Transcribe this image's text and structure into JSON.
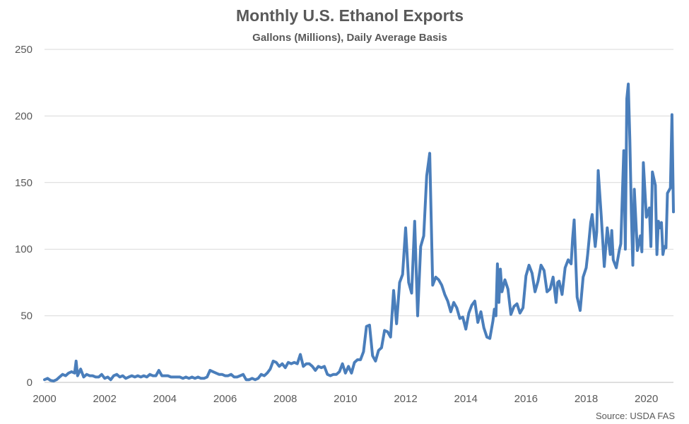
{
  "chart_data": {
    "type": "line",
    "title": "Monthly U.S. Ethanol Exports",
    "subtitle": "Gallons (Millions), Daily Average Basis",
    "source": "Source: USDA FAS",
    "xlabel": "",
    "ylabel": "",
    "xlim": [
      2000,
      2020.9
    ],
    "ylim": [
      0,
      250
    ],
    "yticks": [
      0,
      50,
      100,
      150,
      200,
      250
    ],
    "xticks": [
      2000,
      2002,
      2004,
      2006,
      2008,
      2010,
      2012,
      2014,
      2016,
      2018,
      2020
    ],
    "grid": true,
    "legend": "none",
    "colors": {
      "series": "#4a7ebb",
      "grid": "#d9d9d9",
      "text": "#595959"
    },
    "series": [
      {
        "points": [
          [
            2000.0,
            2
          ],
          [
            2000.1,
            3
          ],
          [
            2000.2,
            1.5
          ],
          [
            2000.3,
            1
          ],
          [
            2000.4,
            2
          ],
          [
            2000.5,
            4
          ],
          [
            2000.6,
            6
          ],
          [
            2000.7,
            5
          ],
          [
            2000.8,
            7
          ],
          [
            2000.9,
            8
          ],
          [
            2001.0,
            7
          ],
          [
            2001.05,
            16
          ],
          [
            2001.1,
            5
          ],
          [
            2001.2,
            10
          ],
          [
            2001.3,
            4
          ],
          [
            2001.4,
            6
          ],
          [
            2001.5,
            5
          ],
          [
            2001.6,
            5
          ],
          [
            2001.7,
            4
          ],
          [
            2001.8,
            4
          ],
          [
            2001.9,
            6
          ],
          [
            2002.0,
            3
          ],
          [
            2002.1,
            4
          ],
          [
            2002.2,
            2
          ],
          [
            2002.3,
            5
          ],
          [
            2002.4,
            6
          ],
          [
            2002.5,
            4
          ],
          [
            2002.6,
            5
          ],
          [
            2002.7,
            3
          ],
          [
            2002.8,
            4
          ],
          [
            2002.9,
            5
          ],
          [
            2003.0,
            4
          ],
          [
            2003.1,
            5
          ],
          [
            2003.2,
            4
          ],
          [
            2003.3,
            5
          ],
          [
            2003.4,
            4
          ],
          [
            2003.5,
            6
          ],
          [
            2003.6,
            5
          ],
          [
            2003.7,
            5
          ],
          [
            2003.8,
            9
          ],
          [
            2003.9,
            5
          ],
          [
            2004.0,
            5
          ],
          [
            2004.1,
            5
          ],
          [
            2004.2,
            4
          ],
          [
            2004.3,
            4
          ],
          [
            2004.4,
            4
          ],
          [
            2004.5,
            4
          ],
          [
            2004.6,
            3
          ],
          [
            2004.7,
            4
          ],
          [
            2004.8,
            3
          ],
          [
            2004.9,
            4
          ],
          [
            2005.0,
            3
          ],
          [
            2005.1,
            4
          ],
          [
            2005.2,
            3
          ],
          [
            2005.3,
            3
          ],
          [
            2005.4,
            4
          ],
          [
            2005.5,
            9
          ],
          [
            2005.6,
            8
          ],
          [
            2005.7,
            7
          ],
          [
            2005.8,
            6
          ],
          [
            2005.9,
            6
          ],
          [
            2006.0,
            5
          ],
          [
            2006.1,
            5
          ],
          [
            2006.2,
            6
          ],
          [
            2006.3,
            4
          ],
          [
            2006.4,
            4
          ],
          [
            2006.5,
            5
          ],
          [
            2006.6,
            6
          ],
          [
            2006.7,
            2
          ],
          [
            2006.8,
            2
          ],
          [
            2006.9,
            3
          ],
          [
            2007.0,
            2
          ],
          [
            2007.1,
            3
          ],
          [
            2007.2,
            6
          ],
          [
            2007.3,
            5
          ],
          [
            2007.4,
            7
          ],
          [
            2007.5,
            10
          ],
          [
            2007.6,
            16
          ],
          [
            2007.7,
            15
          ],
          [
            2007.8,
            12
          ],
          [
            2007.9,
            14
          ],
          [
            2008.0,
            11
          ],
          [
            2008.1,
            15
          ],
          [
            2008.2,
            14
          ],
          [
            2008.3,
            15
          ],
          [
            2008.4,
            14
          ],
          [
            2008.5,
            21
          ],
          [
            2008.6,
            12
          ],
          [
            2008.7,
            14
          ],
          [
            2008.8,
            14
          ],
          [
            2008.9,
            12
          ],
          [
            2009.0,
            9
          ],
          [
            2009.1,
            12
          ],
          [
            2009.2,
            11
          ],
          [
            2009.3,
            12
          ],
          [
            2009.4,
            6
          ],
          [
            2009.5,
            5
          ],
          [
            2009.6,
            6
          ],
          [
            2009.7,
            6
          ],
          [
            2009.8,
            8
          ],
          [
            2009.9,
            14
          ],
          [
            2010.0,
            7
          ],
          [
            2010.1,
            12
          ],
          [
            2010.2,
            7
          ],
          [
            2010.3,
            15
          ],
          [
            2010.4,
            17
          ],
          [
            2010.5,
            17
          ],
          [
            2010.6,
            23
          ],
          [
            2010.7,
            42
          ],
          [
            2010.8,
            43
          ],
          [
            2010.9,
            20
          ],
          [
            2011.0,
            16
          ],
          [
            2011.1,
            24
          ],
          [
            2011.2,
            26
          ],
          [
            2011.3,
            39
          ],
          [
            2011.4,
            38
          ],
          [
            2011.5,
            34
          ],
          [
            2011.6,
            69
          ],
          [
            2011.7,
            44
          ],
          [
            2011.8,
            75
          ],
          [
            2011.9,
            81
          ],
          [
            2012.0,
            116
          ],
          [
            2012.1,
            75
          ],
          [
            2012.2,
            67
          ],
          [
            2012.3,
            121
          ],
          [
            2012.4,
            50
          ],
          [
            2012.5,
            102
          ],
          [
            2012.6,
            110
          ],
          [
            2012.7,
            155
          ],
          [
            2012.8,
            172
          ],
          [
            2012.9,
            73
          ],
          [
            2013.0,
            79
          ],
          [
            2013.1,
            77
          ],
          [
            2013.2,
            73
          ],
          [
            2013.3,
            66
          ],
          [
            2013.4,
            61
          ],
          [
            2013.5,
            53
          ],
          [
            2013.6,
            60
          ],
          [
            2013.7,
            56
          ],
          [
            2013.8,
            48
          ],
          [
            2013.9,
            49
          ],
          [
            2014.0,
            40
          ],
          [
            2014.1,
            52
          ],
          [
            2014.2,
            58
          ],
          [
            2014.3,
            61
          ],
          [
            2014.4,
            45
          ],
          [
            2014.5,
            53
          ],
          [
            2014.6,
            41
          ],
          [
            2014.7,
            34
          ],
          [
            2014.8,
            33
          ],
          [
            2014.9,
            46
          ],
          [
            2014.95,
            55
          ],
          [
            2015.0,
            50
          ],
          [
            2015.05,
            89
          ],
          [
            2015.1,
            60
          ],
          [
            2015.15,
            85
          ],
          [
            2015.2,
            68
          ],
          [
            2015.3,
            77
          ],
          [
            2015.4,
            70
          ],
          [
            2015.5,
            51
          ],
          [
            2015.6,
            57
          ],
          [
            2015.7,
            59
          ],
          [
            2015.8,
            52
          ],
          [
            2015.9,
            56
          ],
          [
            2016.0,
            80
          ],
          [
            2016.1,
            88
          ],
          [
            2016.2,
            82
          ],
          [
            2016.3,
            68
          ],
          [
            2016.4,
            76
          ],
          [
            2016.5,
            88
          ],
          [
            2016.6,
            84
          ],
          [
            2016.7,
            68
          ],
          [
            2016.8,
            70
          ],
          [
            2016.9,
            79
          ],
          [
            2017.0,
            60
          ],
          [
            2017.05,
            75
          ],
          [
            2017.1,
            76
          ],
          [
            2017.2,
            66
          ],
          [
            2017.3,
            86
          ],
          [
            2017.4,
            92
          ],
          [
            2017.5,
            89
          ],
          [
            2017.55,
            108
          ],
          [
            2017.6,
            122
          ],
          [
            2017.7,
            64
          ],
          [
            2017.8,
            54
          ],
          [
            2017.9,
            79
          ],
          [
            2018.0,
            86
          ],
          [
            2018.05,
            96
          ],
          [
            2018.15,
            120
          ],
          [
            2018.2,
            126
          ],
          [
            2018.3,
            102
          ],
          [
            2018.35,
            113
          ],
          [
            2018.4,
            159
          ],
          [
            2018.5,
            125
          ],
          [
            2018.6,
            87
          ],
          [
            2018.7,
            116
          ],
          [
            2018.8,
            96
          ],
          [
            2018.85,
            114
          ],
          [
            2018.9,
            92
          ],
          [
            2019.0,
            86
          ],
          [
            2019.1,
            99
          ],
          [
            2019.15,
            104
          ],
          [
            2019.25,
            174
          ],
          [
            2019.3,
            100
          ],
          [
            2019.35,
            213
          ],
          [
            2019.4,
            224
          ],
          [
            2019.45,
            182
          ],
          [
            2019.5,
            128
          ],
          [
            2019.55,
            88
          ],
          [
            2019.6,
            145
          ],
          [
            2019.7,
            99
          ],
          [
            2019.8,
            110
          ],
          [
            2019.85,
            98
          ],
          [
            2019.9,
            165
          ],
          [
            2020.0,
            124
          ],
          [
            2020.1,
            131
          ],
          [
            2020.15,
            102
          ],
          [
            2020.2,
            158
          ],
          [
            2020.3,
            148
          ],
          [
            2020.35,
            96
          ],
          [
            2020.4,
            121
          ],
          [
            2020.45,
            116
          ],
          [
            2020.5,
            120
          ],
          [
            2020.55,
            96
          ],
          [
            2020.6,
            102
          ],
          [
            2020.65,
            101
          ],
          [
            2020.7,
            142
          ],
          [
            2020.8,
            146
          ],
          [
            2020.85,
            201
          ],
          [
            2020.9,
            128
          ]
        ]
      }
    ]
  }
}
